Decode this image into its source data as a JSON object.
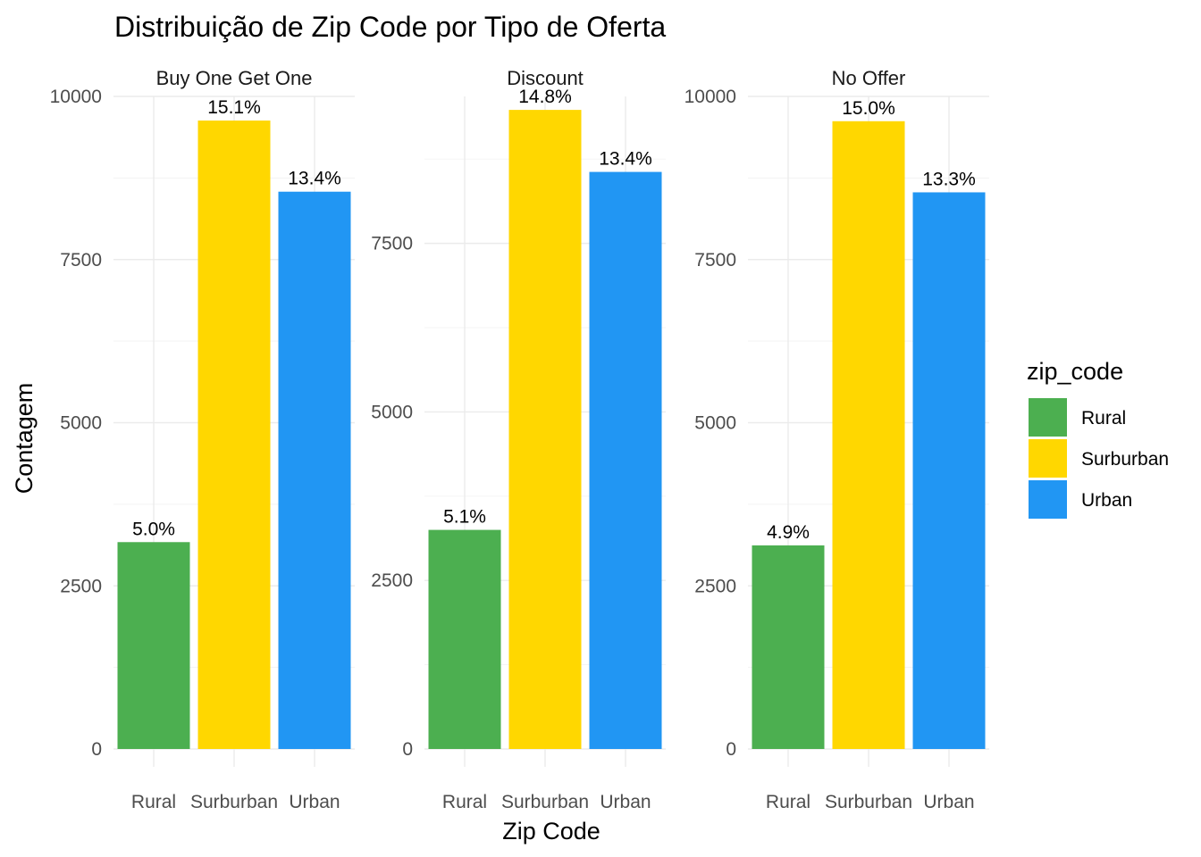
{
  "chart_data": {
    "type": "bar",
    "title": "Distribuição de Zip Code por Tipo de Oferta",
    "xlabel": "Zip Code",
    "ylabel": "Contagem",
    "grid": true,
    "legend": {
      "title": "zip_code",
      "position": "right"
    },
    "categories": [
      "Rural",
      "Surburban",
      "Urban"
    ],
    "colors": {
      "Rural": "#4CAF50",
      "Surburban": "#FFD700",
      "Urban": "#2196F3"
    },
    "facets": [
      {
        "name": "Buy One Get One",
        "ylim": [
          0,
          10000
        ],
        "yticks": [
          0,
          2500,
          5000,
          7500,
          10000
        ],
        "values": [
          3170,
          9630,
          8540
        ],
        "labels": [
          "5.0%",
          "15.1%",
          "13.4%"
        ]
      },
      {
        "name": "Discount",
        "ylim": [
          0,
          9680
        ],
        "yticks": [
          0,
          2500,
          5000,
          7500
        ],
        "values": [
          3250,
          9480,
          8560
        ],
        "labels": [
          "5.1%",
          "14.8%",
          "13.4%"
        ]
      },
      {
        "name": "No Offer",
        "ylim": [
          0,
          10000
        ],
        "yticks": [
          0,
          2500,
          5000,
          7500,
          10000
        ],
        "values": [
          3120,
          9620,
          8530
        ],
        "labels": [
          "4.9%",
          "15.0%",
          "13.3%"
        ]
      }
    ]
  }
}
